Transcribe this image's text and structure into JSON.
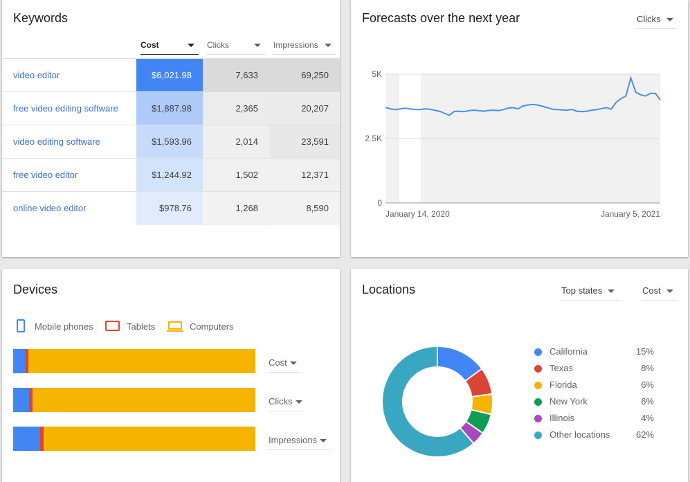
{
  "keywords": {
    "title": "Keywords",
    "columns": [
      {
        "label": "Cost",
        "active": true
      },
      {
        "label": "Clicks",
        "active": false
      },
      {
        "label": "Impressions",
        "active": false
      }
    ],
    "rows": [
      {
        "keyword": "video editor",
        "cost": "$6,021.98",
        "clicks": "7,633",
        "impressions": "69,250"
      },
      {
        "keyword": "free video editing software",
        "cost": "$1,887.98",
        "clicks": "2,365",
        "impressions": "20,207"
      },
      {
        "keyword": "video editing software",
        "cost": "$1,593.96",
        "clicks": "2,014",
        "impressions": "23,591"
      },
      {
        "keyword": "free video editor",
        "cost": "$1,244.92",
        "clicks": "1,502",
        "impressions": "12,371"
      },
      {
        "keyword": "online video editor",
        "cost": "$978.76",
        "clicks": "1,268",
        "impressions": "8,590"
      }
    ],
    "cost_colors": [
      "#4285f4",
      "#aecbfa",
      "#c6dafc",
      "#d2e3fc",
      "#e1ebfd"
    ],
    "clicks_colors": [
      "#dadada",
      "#ececec",
      "#efefef",
      "#f0f0f0",
      "#f2f2f2"
    ],
    "impr_colors": [
      "#dadada",
      "#ebebeb",
      "#e8e8e8",
      "#f0f0f0",
      "#f3f3f3"
    ]
  },
  "forecast": {
    "title": "Forecasts over the next year",
    "metric": "Clicks",
    "chart_data": {
      "type": "line",
      "ylim": [
        0,
        5000
      ],
      "y_ticks": [
        "5K",
        "2.5K",
        "0"
      ],
      "x_labels": [
        "January 14, 2020",
        "January 5, 2021"
      ],
      "color": "#4a90e2",
      "values": [
        3700,
        3650,
        3620,
        3650,
        3680,
        3650,
        3630,
        3620,
        3650,
        3640,
        3600,
        3560,
        3480,
        3400,
        3550,
        3560,
        3540,
        3580,
        3600,
        3580,
        3560,
        3590,
        3600,
        3580,
        3620,
        3680,
        3700,
        3650,
        3760,
        3800,
        3820,
        3800,
        3750,
        3700,
        3640,
        3620,
        3610,
        3600,
        3630,
        3560,
        3540,
        3560,
        3600,
        3620,
        3660,
        3700,
        3640,
        3900,
        4050,
        4150,
        4850,
        4300,
        4200,
        4150,
        4250,
        4250,
        4000
      ]
    }
  },
  "devices": {
    "title": "Devices",
    "legend": [
      {
        "label": "Mobile phones",
        "color": "#4285f4",
        "icon": "mobile-phone-icon"
      },
      {
        "label": "Tablets",
        "color": "#db4437",
        "icon": "tablet-icon"
      },
      {
        "label": "Computers",
        "color": "#f4b400",
        "icon": "computer-icon"
      }
    ],
    "bars": [
      {
        "metric": "Cost",
        "segments": [
          0.05,
          0.012,
          0.938
        ]
      },
      {
        "metric": "Clicks",
        "segments": [
          0.065,
          0.015,
          0.92
        ]
      },
      {
        "metric": "Impressions",
        "segments": [
          0.11,
          0.015,
          0.875
        ]
      }
    ]
  },
  "locations": {
    "title": "Locations",
    "scope": "Top states",
    "metric": "Cost",
    "items": [
      {
        "name": "California",
        "pct": "15%",
        "value": 15,
        "color": "#4285f4"
      },
      {
        "name": "Texas",
        "pct": "8%",
        "value": 8,
        "color": "#db4437"
      },
      {
        "name": "Florida",
        "pct": "6%",
        "value": 6,
        "color": "#f4b400"
      },
      {
        "name": "New York",
        "pct": "6%",
        "value": 6,
        "color": "#0f9d58"
      },
      {
        "name": "Illinois",
        "pct": "4%",
        "value": 4,
        "color": "#ab47bc"
      },
      {
        "name": "Other locations",
        "pct": "62%",
        "value": 62,
        "color": "#3aa7c2"
      }
    ]
  }
}
